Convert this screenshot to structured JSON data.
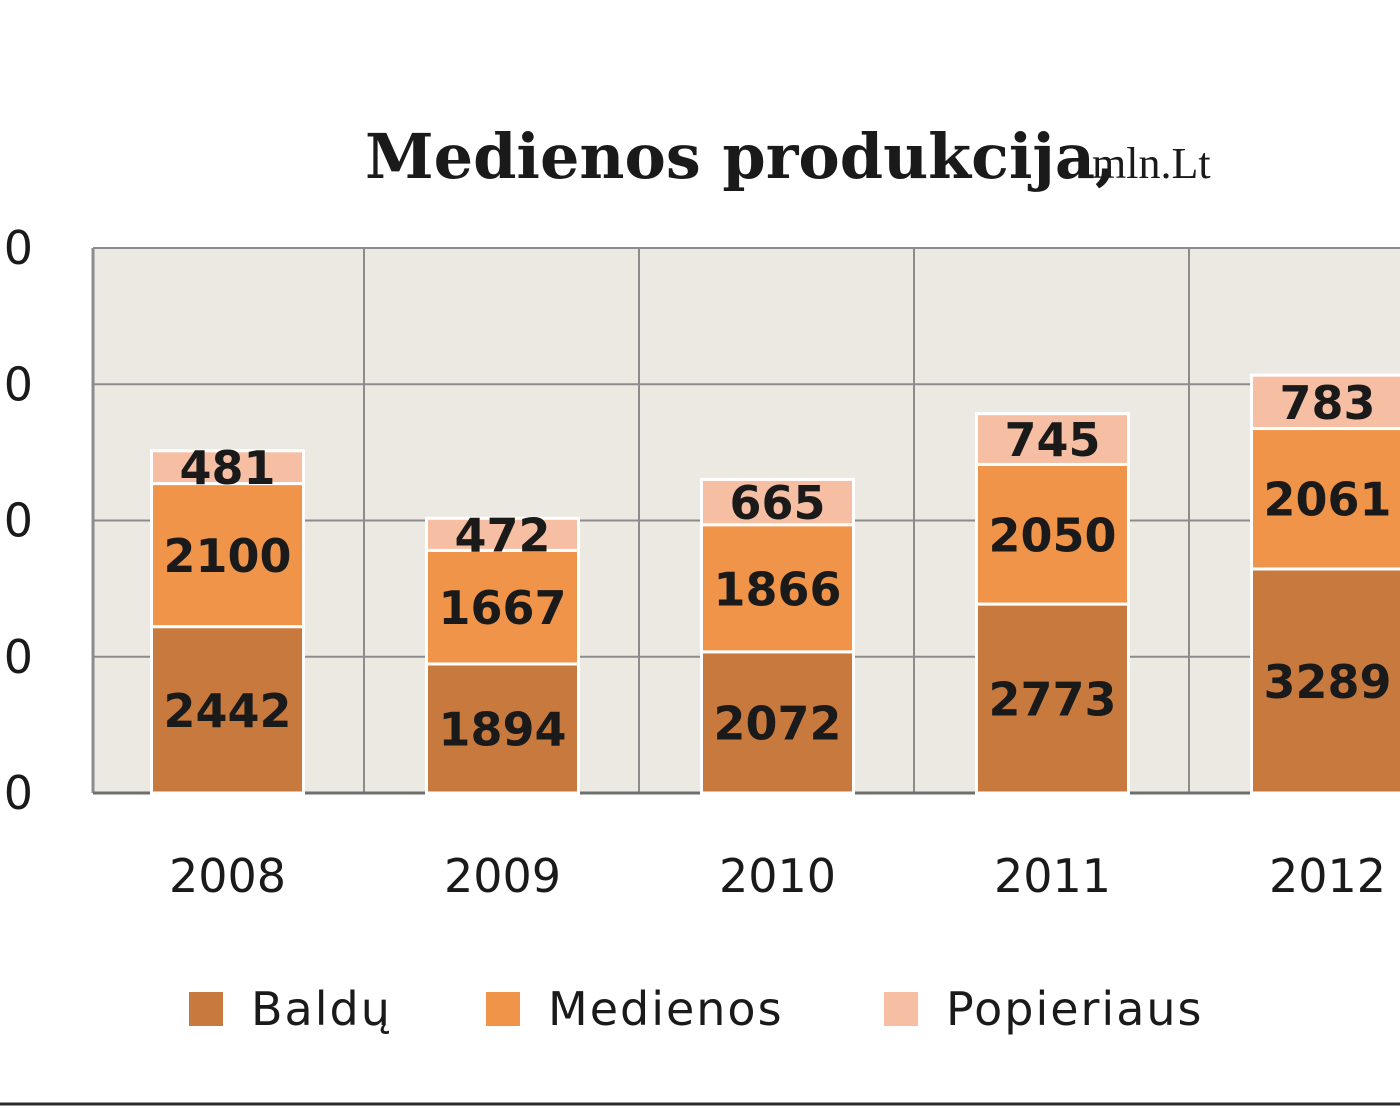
{
  "chart_data": {
    "type": "bar",
    "stacked": true,
    "title": "Medienos produkcija,",
    "subtitle": "mln.Lt",
    "xlabel": "",
    "ylabel": "",
    "categories": [
      "2008",
      "2009",
      "2010",
      "2011",
      "2012"
    ],
    "y_tick_labels": [
      "0",
      "0",
      "0",
      "0",
      "0"
    ],
    "ylim": [
      0,
      8000
    ],
    "grid": true,
    "legend": "bottom",
    "series": [
      {
        "name": "Baldų",
        "color": "#c87a3e",
        "values": [
          2442,
          1894,
          2072,
          2773,
          3289
        ]
      },
      {
        "name": "Medienos",
        "color": "#f0944a",
        "values": [
          2100,
          1667,
          1866,
          2050,
          2061
        ]
      },
      {
        "name": "Popieriaus",
        "color": "#f6bfa3",
        "values": [
          481,
          472,
          665,
          745,
          783
        ]
      }
    ],
    "plot_background": "#ece9e2",
    "gridline_color": "#8c8c8c"
  }
}
